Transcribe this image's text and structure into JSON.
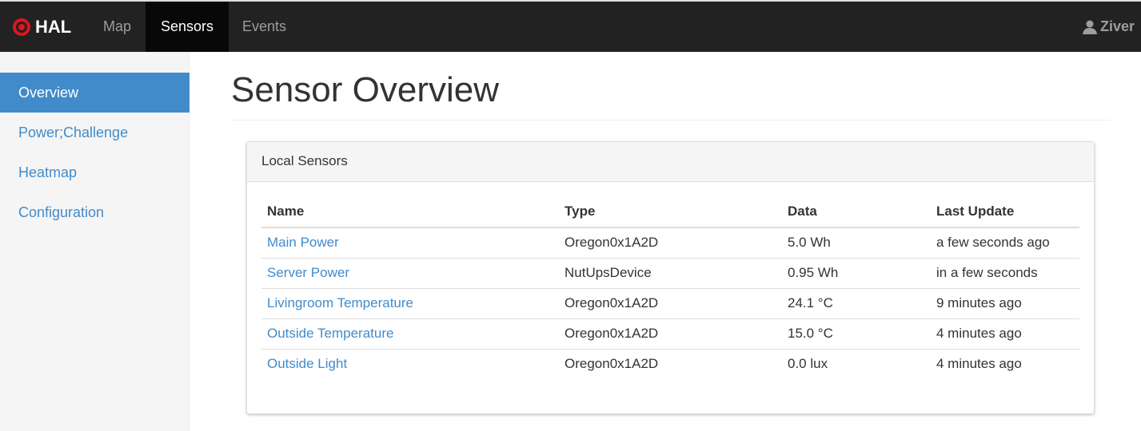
{
  "navbar": {
    "brand": "HAL",
    "items": [
      "Map",
      "Sensors",
      "Events"
    ],
    "active": "Sensors",
    "user": "Ziver"
  },
  "sidebar": {
    "items": [
      "Overview",
      "Power;Challenge",
      "Heatmap",
      "Configuration"
    ],
    "active": "Overview"
  },
  "page": {
    "title": "Sensor Overview"
  },
  "panel": {
    "title": "Local Sensors",
    "columns": [
      "Name",
      "Type",
      "Data",
      "Last Update"
    ],
    "rows": [
      [
        "Main Power",
        "Oregon0x1A2D",
        "5.0 Wh",
        "a few seconds ago"
      ],
      [
        "Server Power",
        "NutUpsDevice",
        "0.95 Wh",
        "in a few seconds"
      ],
      [
        "Livingroom Temperature",
        "Oregon0x1A2D",
        "24.1 °C",
        "9 minutes ago"
      ],
      [
        "Outside Temperature",
        "Oregon0x1A2D",
        "15.0 °C",
        "4 minutes ago"
      ],
      [
        "Outside Light",
        "Oregon0x1A2D",
        "0.0 lux",
        "4 minutes ago"
      ]
    ]
  },
  "colors": {
    "accent": "#428bca",
    "brand_icon": "#e0141e",
    "navbar": "#222222"
  }
}
